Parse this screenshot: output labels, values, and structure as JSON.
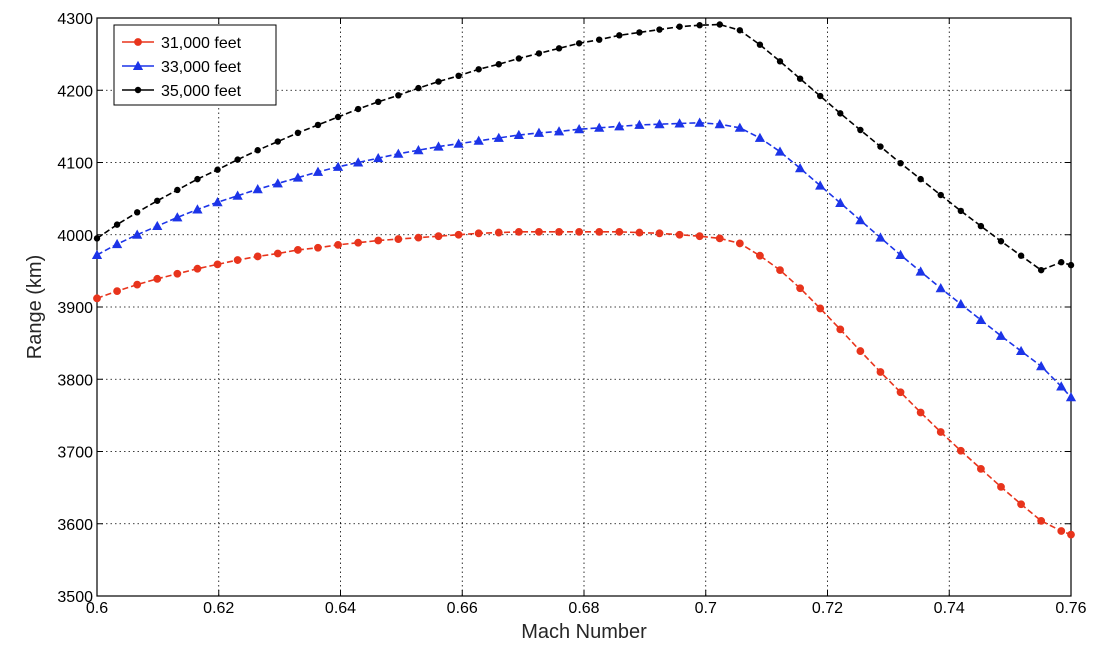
{
  "chart_data": {
    "type": "line",
    "xlabel": "Mach Number",
    "ylabel": "Range (km)",
    "xlim": [
      0.6,
      0.76
    ],
    "ylim": [
      3500,
      4300
    ],
    "xticks": [
      "0.6",
      "0.62",
      "0.64",
      "0.66",
      "0.68",
      "0.7",
      "0.72",
      "0.74",
      "0.76"
    ],
    "yticks": [
      "3500",
      "3600",
      "3700",
      "3800",
      "3900",
      "4000",
      "4100",
      "4200",
      "4300"
    ],
    "grid": true,
    "legend_position": "top-left",
    "x": [
      0.6,
      0.6033,
      0.6066,
      0.6099,
      0.6132,
      0.6165,
      0.6198,
      0.6231,
      0.6264,
      0.6297,
      0.633,
      0.6363,
      0.6396,
      0.6429,
      0.6462,
      0.6495,
      0.6528,
      0.6561,
      0.6594,
      0.6627,
      0.666,
      0.6693,
      0.6726,
      0.6759,
      0.6792,
      0.6825,
      0.6858,
      0.6891,
      0.6924,
      0.6957,
      0.699,
      0.7023,
      0.7056,
      0.7089,
      0.7122,
      0.7155,
      0.7188,
      0.7221,
      0.7254,
      0.7287,
      0.732,
      0.7353,
      0.7386,
      0.7419,
      0.7452,
      0.7485,
      0.7518,
      0.7551,
      0.7584,
      0.76
    ],
    "series": [
      {
        "name": "31,000 feet",
        "color": "#e8341c",
        "marker": "circle",
        "values": [
          3912,
          3922,
          3931,
          3939,
          3946,
          3953,
          3959,
          3965,
          3970,
          3974,
          3979,
          3982,
          3986,
          3989,
          3992,
          3994,
          3996,
          3998,
          4000,
          4002,
          4003,
          4004,
          4004,
          4004,
          4004,
          4004,
          4004,
          4003,
          4002,
          4000,
          3998,
          3995,
          3988,
          3971,
          3951,
          3926,
          3898,
          3869,
          3839,
          3810,
          3782,
          3754,
          3727,
          3701,
          3676,
          3651,
          3627,
          3604,
          3590,
          3585
        ]
      },
      {
        "name": "33,000 feet",
        "color": "#1c34e8",
        "marker": "triangle",
        "values": [
          3972,
          3987,
          4000,
          4012,
          4024,
          4035,
          4045,
          4054,
          4063,
          4071,
          4079,
          4087,
          4094,
          4100,
          4106,
          4112,
          4117,
          4122,
          4126,
          4130,
          4134,
          4138,
          4141,
          4143,
          4146,
          4148,
          4150,
          4152,
          4153,
          4154,
          4155,
          4153,
          4148,
          4134,
          4115,
          4092,
          4068,
          4044,
          4020,
          3996,
          3972,
          3949,
          3926,
          3904,
          3882,
          3860,
          3839,
          3818,
          3790,
          3775
        ]
      },
      {
        "name": "35,000 feet",
        "color": "#000000",
        "marker": "dot",
        "values": [
          3995,
          4014,
          4031,
          4047,
          4062,
          4077,
          4090,
          4104,
          4117,
          4129,
          4141,
          4152,
          4163,
          4174,
          4184,
          4193,
          4203,
          4212,
          4220,
          4229,
          4236,
          4244,
          4251,
          4258,
          4265,
          4270,
          4276,
          4280,
          4284,
          4288,
          4290,
          4291,
          4283,
          4263,
          4240,
          4216,
          4192,
          4168,
          4145,
          4122,
          4099,
          4077,
          4055,
          4033,
          4012,
          3991,
          3971,
          3951,
          3962,
          3958
        ]
      }
    ]
  }
}
